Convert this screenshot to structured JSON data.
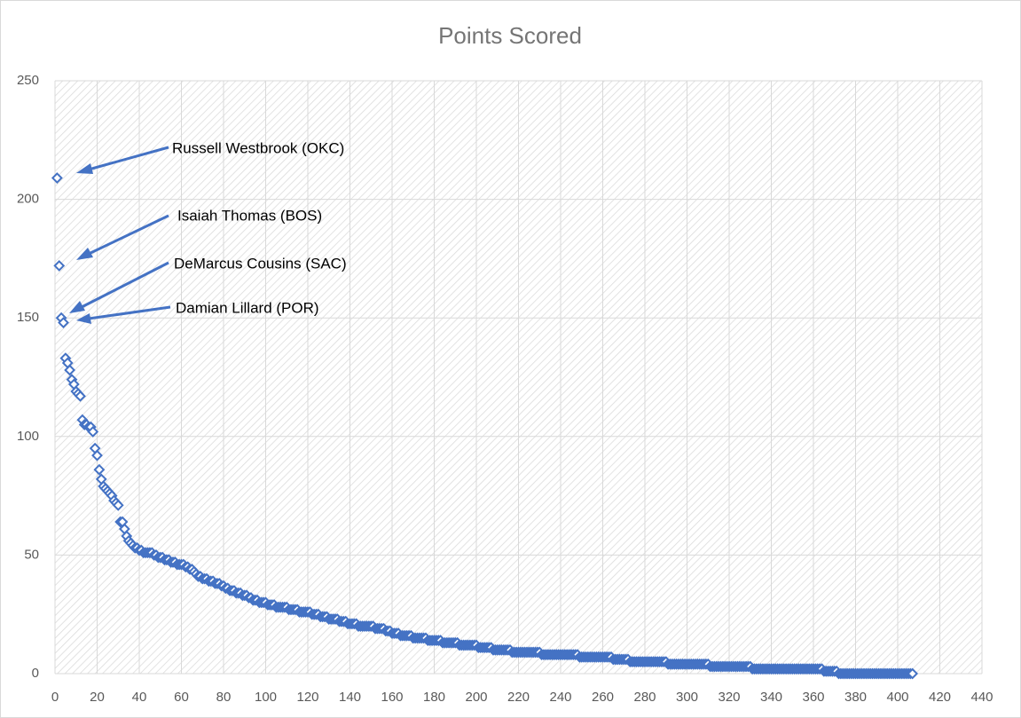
{
  "chart_data": {
    "type": "scatter",
    "title": "Points Scored",
    "color": "#4472c4",
    "grid": true,
    "xlim": [
      0,
      440
    ],
    "ylim": [
      0,
      250
    ],
    "xticks": [
      0,
      20,
      40,
      60,
      80,
      100,
      120,
      140,
      160,
      180,
      200,
      220,
      240,
      260,
      280,
      300,
      320,
      340,
      360,
      380,
      400,
      420,
      440
    ],
    "yticks": [
      0,
      50,
      100,
      150,
      200,
      250
    ],
    "annotations": [
      "Russell Westbrook (OKC)",
      "Isaiah Thomas (BOS)",
      "DeMarcus Cousins (SAC)",
      "Damian Lillard (POR)"
    ],
    "x": [
      1,
      2,
      3,
      4,
      5,
      6,
      7,
      8,
      9,
      10,
      11,
      12,
      13,
      14,
      15,
      16,
      17,
      18,
      19,
      20,
      21,
      22,
      23,
      24,
      25,
      26,
      27,
      28,
      29,
      30,
      31,
      32,
      33,
      34,
      35,
      36,
      37,
      38,
      39,
      40,
      41,
      42,
      43,
      44,
      45,
      46,
      47,
      48,
      49,
      50,
      51,
      52,
      53,
      54,
      55,
      56,
      57,
      58,
      59,
      60,
      61,
      62,
      63,
      64,
      65,
      66,
      67,
      68,
      69,
      70,
      71,
      72,
      73,
      74,
      75,
      76,
      77,
      78,
      79,
      80,
      81,
      82,
      83,
      84,
      85,
      86,
      87,
      88,
      89,
      90,
      91,
      92,
      93,
      94,
      95,
      96,
      97,
      98,
      99,
      100,
      101,
      102,
      103,
      104,
      105,
      106,
      107,
      108,
      109,
      110,
      111,
      112,
      113,
      114,
      115,
      116,
      117,
      118,
      119,
      120,
      121,
      122,
      123,
      124,
      125,
      126,
      127,
      128,
      129,
      130,
      131,
      132,
      133,
      134,
      135,
      136,
      137,
      138,
      139,
      140,
      141,
      142,
      143,
      144,
      145,
      146,
      147,
      148,
      149,
      150,
      151,
      152,
      153,
      154,
      155,
      156,
      157,
      158,
      159,
      160,
      161,
      162,
      163,
      164,
      165,
      166,
      167,
      168,
      169,
      170,
      171,
      172,
      173,
      174,
      175,
      176,
      177,
      178,
      179,
      180,
      181,
      182,
      183,
      184,
      185,
      186,
      187,
      188,
      189,
      190,
      191,
      192,
      193,
      194,
      195,
      196,
      197,
      198,
      199,
      200,
      201,
      202,
      203,
      204,
      205,
      206,
      207,
      208,
      209,
      210,
      211,
      212,
      213,
      214,
      215,
      216,
      217,
      218,
      219,
      220,
      221,
      222,
      223,
      224,
      225,
      226,
      227,
      228,
      229,
      230,
      231,
      232,
      233,
      234,
      235,
      236,
      237,
      238,
      239,
      240,
      241,
      242,
      243,
      244,
      245,
      246,
      247,
      248,
      249,
      250,
      251,
      252,
      253,
      254,
      255,
      256,
      257,
      258,
      259,
      260,
      261,
      262,
      263,
      264,
      265,
      266,
      267,
      268,
      269,
      270,
      271,
      272,
      273,
      274,
      275,
      276,
      277,
      278,
      279,
      280,
      281,
      282,
      283,
      284,
      285,
      286,
      287,
      288,
      289,
      290,
      291,
      292,
      293,
      294,
      295,
      296,
      297,
      298,
      299,
      300,
      301,
      302,
      303,
      304,
      305,
      306,
      307,
      308,
      309,
      310,
      311,
      312,
      313,
      314,
      315,
      316,
      317,
      318,
      319,
      320,
      321,
      322,
      323,
      324,
      325,
      326,
      327,
      328,
      329,
      330,
      331,
      332,
      333,
      334,
      335,
      336,
      337,
      338,
      339,
      340,
      341,
      342,
      343,
      344,
      345,
      346,
      347,
      348,
      349,
      350,
      351,
      352,
      353,
      354,
      355,
      356,
      357,
      358,
      359,
      360,
      361,
      362,
      363,
      364,
      365,
      366,
      367,
      368,
      369,
      370,
      371,
      372,
      373,
      374,
      375,
      376,
      377,
      378,
      379,
      380,
      381,
      382,
      383,
      384,
      385,
      386,
      387,
      388,
      389,
      390,
      391,
      392,
      393,
      394,
      395,
      396,
      397,
      398,
      399,
      400,
      401,
      402,
      403,
      404,
      405,
      406,
      407
    ],
    "values": [
      209,
      172,
      150,
      148,
      133,
      131,
      128,
      124,
      122,
      119,
      118,
      117,
      107,
      105,
      105,
      104,
      104,
      102,
      95,
      92,
      86,
      82,
      79,
      78,
      77,
      76,
      75,
      73,
      72,
      71,
      64,
      64,
      61,
      58,
      56,
      55,
      54,
      53,
      53,
      52,
      52,
      51,
      51,
      51,
      51,
      51,
      50,
      50,
      49,
      49,
      49,
      48,
      48,
      48,
      47,
      47,
      47,
      46,
      46,
      46,
      46,
      45,
      45,
      44,
      44,
      43,
      42,
      41,
      41,
      40,
      40,
      40,
      39,
      39,
      39,
      38,
      38,
      38,
      37,
      37,
      36,
      36,
      35,
      35,
      35,
      34,
      34,
      34,
      33,
      33,
      33,
      32,
      32,
      31,
      31,
      31,
      30,
      30,
      30,
      30,
      29,
      29,
      29,
      29,
      28,
      28,
      28,
      28,
      28,
      28,
      27,
      27,
      27,
      27,
      27,
      26,
      26,
      26,
      26,
      26,
      26,
      25,
      25,
      25,
      25,
      24,
      24,
      24,
      24,
      23,
      23,
      23,
      23,
      23,
      22,
      22,
      22,
      22,
      21,
      21,
      21,
      21,
      21,
      20,
      20,
      20,
      20,
      20,
      20,
      20,
      20,
      19,
      19,
      19,
      19,
      19,
      18,
      18,
      18,
      17,
      17,
      17,
      17,
      16,
      16,
      16,
      16,
      16,
      16,
      15,
      15,
      15,
      15,
      15,
      15,
      15,
      14,
      14,
      14,
      14,
      14,
      14,
      14,
      13,
      13,
      13,
      13,
      13,
      13,
      13,
      13,
      12,
      12,
      12,
      12,
      12,
      12,
      12,
      12,
      12,
      11,
      11,
      11,
      11,
      11,
      11,
      11,
      10,
      10,
      10,
      10,
      10,
      10,
      10,
      10,
      10,
      9,
      9,
      9,
      9,
      9,
      9,
      9,
      9,
      9,
      9,
      9,
      9,
      9,
      9,
      8,
      8,
      8,
      8,
      8,
      8,
      8,
      8,
      8,
      8,
      8,
      8,
      8,
      8,
      8,
      8,
      8,
      8,
      7,
      7,
      7,
      7,
      7,
      7,
      7,
      7,
      7,
      7,
      7,
      7,
      7,
      7,
      7,
      7,
      6,
      6,
      6,
      6,
      6,
      6,
      6,
      6,
      5,
      5,
      5,
      5,
      5,
      5,
      5,
      5,
      5,
      5,
      5,
      5,
      5,
      5,
      5,
      5,
      5,
      5,
      4,
      4,
      4,
      4,
      4,
      4,
      4,
      4,
      4,
      4,
      4,
      4,
      4,
      4,
      4,
      4,
      4,
      4,
      4,
      4,
      3,
      3,
      3,
      3,
      3,
      3,
      3,
      3,
      3,
      3,
      3,
      3,
      3,
      3,
      3,
      3,
      3,
      3,
      3,
      3,
      2,
      2,
      2,
      2,
      2,
      2,
      2,
      2,
      2,
      2,
      2,
      2,
      2,
      2,
      2,
      2,
      2,
      2,
      2,
      2,
      2,
      2,
      2,
      2,
      2,
      2,
      2,
      2,
      2,
      2,
      2,
      2,
      2,
      2,
      1,
      1,
      1,
      1,
      1,
      1,
      1,
      0,
      0,
      0,
      0,
      0,
      0,
      0,
      0,
      0,
      0,
      0,
      0,
      0,
      0,
      0,
      0,
      0,
      0,
      0,
      0,
      0,
      0,
      0,
      0,
      0,
      0,
      0,
      0,
      0,
      0,
      0,
      0,
      0,
      0,
      0,
      0
    ]
  }
}
